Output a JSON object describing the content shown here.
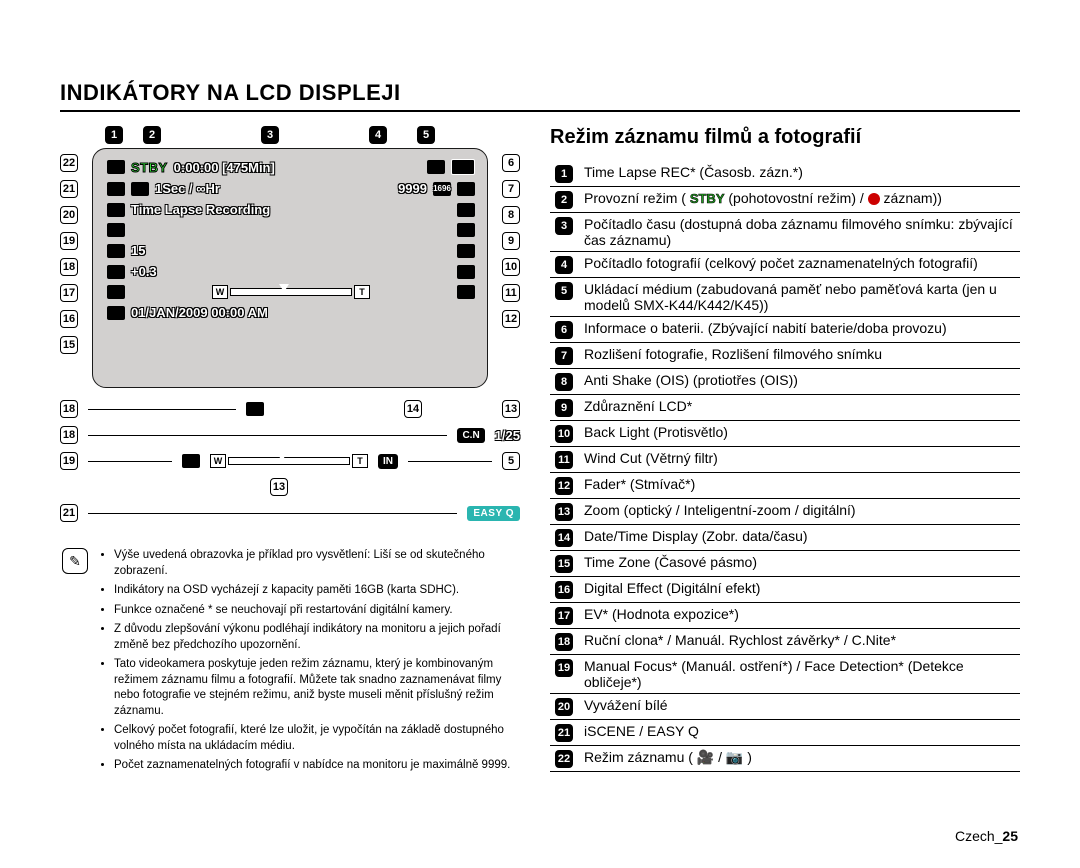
{
  "page": {
    "heading": "INDIKÁTORY NA LCD DISPLEJI",
    "sub_heading": "Režim záznamu filmů a fotografií",
    "footer_lang": "Czech_",
    "footer_page": "25"
  },
  "lcd": {
    "stby": "STBY",
    "time_counter": "0:00:00 [475Min]",
    "photo_count": "9999",
    "interval": "1Sec / ∞Hr",
    "mode_text": "Time Lapse Recording",
    "val_15": "15",
    "val_ev": "+0.3",
    "datetime": "01/JAN/2009 00:00 AM",
    "zoom_w": "W",
    "zoom_t": "T",
    "res_badge": "1696"
  },
  "below": {
    "cn": "C.N",
    "shutter": "1/25",
    "easyq": "EASY Q",
    "in": "IN"
  },
  "top_callouts": [
    "1",
    "2",
    "3",
    "4",
    "5"
  ],
  "left_side": [
    "22",
    "21",
    "20",
    "19",
    "18",
    "17",
    "16",
    "15"
  ],
  "right_side": [
    "6",
    "7",
    "8",
    "9",
    "10",
    "11",
    "12"
  ],
  "below_badges": {
    "a": "18",
    "b": "18",
    "c": "19",
    "d": "21",
    "mid1": "14",
    "mid2": "13",
    "mid3": "13",
    "right1": "5"
  },
  "legend": {
    "rows": [
      {
        "n": "1",
        "t": "Time Lapse REC* (Časosb. zázn.*)"
      },
      {
        "n": "2",
        "t": "Provozní režim ( {STBY} (pohotovostní režim) / {REC} záznam))",
        "stby_rec": true
      },
      {
        "n": "3",
        "t": "Počítadlo času (dostupná doba záznamu filmového snímku: zbývající čas záznamu)"
      },
      {
        "n": "4",
        "t": "Počítadlo fotografií (celkový počet zaznamenatelných fotografií)"
      },
      {
        "n": "5",
        "t": "Ukládací médium (zabudovaná paměť nebo paměťová karta (jen u modelů SMX-K44/K442/K45))"
      },
      {
        "n": "6",
        "t": "Informace o baterii. (Zbývající nabití baterie/doba provozu)"
      },
      {
        "n": "7",
        "t": "Rozlišení fotografie, Rozlišení filmového snímku"
      },
      {
        "n": "8",
        "t": "Anti Shake (OIS) (protiotřes (OIS))"
      },
      {
        "n": "9",
        "t": "Zdůraznění LCD*"
      },
      {
        "n": "10",
        "t": "Back Light (Protisvětlo)"
      },
      {
        "n": "11",
        "t": "Wind Cut (Větrný filtr)"
      },
      {
        "n": "12",
        "t": "Fader* (Stmívač*)"
      },
      {
        "n": "13",
        "t": "Zoom (optický / Inteligentní-zoom / digitální)"
      },
      {
        "n": "14",
        "t": "Date/Time Display (Zobr. data/času)"
      },
      {
        "n": "15",
        "t": "Time Zone (Časové pásmo)"
      },
      {
        "n": "16",
        "t": "Digital Effect (Digitální efekt)"
      },
      {
        "n": "17",
        "t": "EV* (Hodnota expozice*)"
      },
      {
        "n": "18",
        "t": "Ruční clona* / Manuál. Rychlost závěrky* / C.Nite*"
      },
      {
        "n": "19",
        "t": "Manual Focus* (Manuál. ostření*) / Face Detection* (Detekce obličeje*)"
      },
      {
        "n": "20",
        "t": "Vyvážení bílé"
      },
      {
        "n": "21",
        "t": "iSCENE / EASY Q"
      },
      {
        "n": "22",
        "t": "Režim záznamu ( 🎥 / 📷 )"
      }
    ]
  },
  "notes": {
    "items": [
      "Výše uvedená obrazovka je příklad pro vysvětlení: Liší se od skutečného zobrazení.",
      "Indikátory na OSD vycházejí z kapacity paměti 16GB (karta SDHC).",
      "Funkce označené * se neuchovají při restartování digitální kamery.",
      "Z důvodu zlepšování výkonu podléhají indikátory na monitoru a jejich pořadí změně bez předchozího upozornění.",
      "Tato videokamera poskytuje jeden režim záznamu, který je kombinovaným režimem záznamu filmu a fotografií. Můžete tak snadno zaznamenávat filmy nebo fotografie ve stejném režimu, aniž byste museli měnit příslušný režim záznamu.",
      "Celkový počet fotografií, které lze uložit, je vypočítán na základě dostupného volného místa na ukládacím médiu.",
      "Počet zaznamenatelných fotografií v nabídce na monitoru je maximálně 9999."
    ]
  }
}
